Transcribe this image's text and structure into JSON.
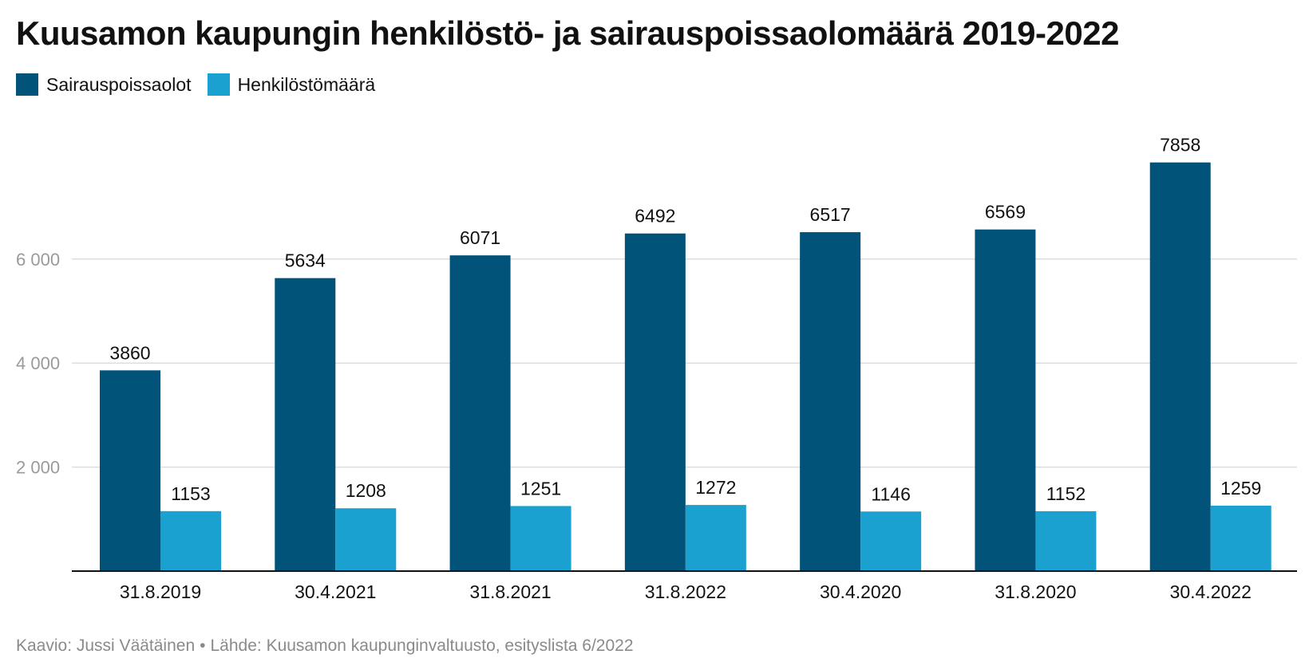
{
  "chart_data": {
    "type": "bar",
    "title": "Kuusamon kaupungin henkilöstö- ja sairauspoissaolomäärä 2019-2022",
    "categories": [
      "31.8.2019",
      "30.4.2021",
      "31.8.2021",
      "31.8.2022",
      "30.4.2020",
      "31.8.2020",
      "30.4.2022"
    ],
    "series": [
      {
        "name": "Sairauspoissaolot",
        "color": "#01537a",
        "values": [
          3860,
          5634,
          6071,
          6492,
          6517,
          6569,
          7858
        ]
      },
      {
        "name": "Henkilöstömäärä",
        "color": "#1ba1d0",
        "values": [
          1153,
          1208,
          1251,
          1272,
          1146,
          1152,
          1259
        ]
      }
    ],
    "yticks": [
      2000,
      4000,
      6000
    ],
    "ytick_labels": [
      "2 000",
      "4 000",
      "6 000"
    ],
    "ylim": [
      0,
      8000
    ],
    "grid": true,
    "legend_position": "top-left",
    "xlabel": "",
    "ylabel": ""
  },
  "footer": {
    "author": "Kaavio: Jussi Väätäinen",
    "separator": "•",
    "source": "Lähde: Kuusamon kaupunginvaltuusto, esityslista 6/2022"
  }
}
